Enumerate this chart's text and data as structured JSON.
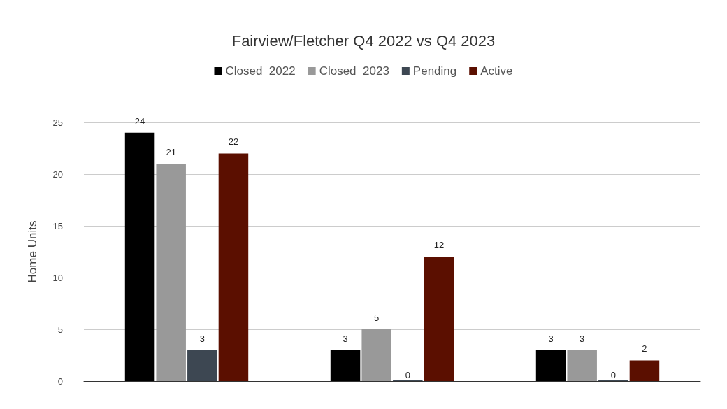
{
  "chart_data": {
    "type": "bar",
    "title": "Fairview/Fletcher Q4 2022 vs Q4 2023",
    "ylabel": "Home Units",
    "categories": [
      null,
      null,
      null
    ],
    "series": [
      {
        "name": "Closed  2022",
        "color": "#000000",
        "values": [
          24,
          3,
          3
        ]
      },
      {
        "name": "Closed  2023",
        "color": "#999999",
        "values": [
          21,
          5,
          3
        ]
      },
      {
        "name": "Pending",
        "color": "#3d4752",
        "values": [
          3,
          0,
          0
        ]
      },
      {
        "name": "Active",
        "color": "#5b0f00",
        "values": [
          22,
          12,
          2
        ]
      }
    ],
    "ylim": [
      0,
      25
    ],
    "yticks": [
      0,
      5,
      10,
      15,
      20,
      25
    ],
    "grid": "y",
    "legend": "top",
    "data_labels": true
  }
}
